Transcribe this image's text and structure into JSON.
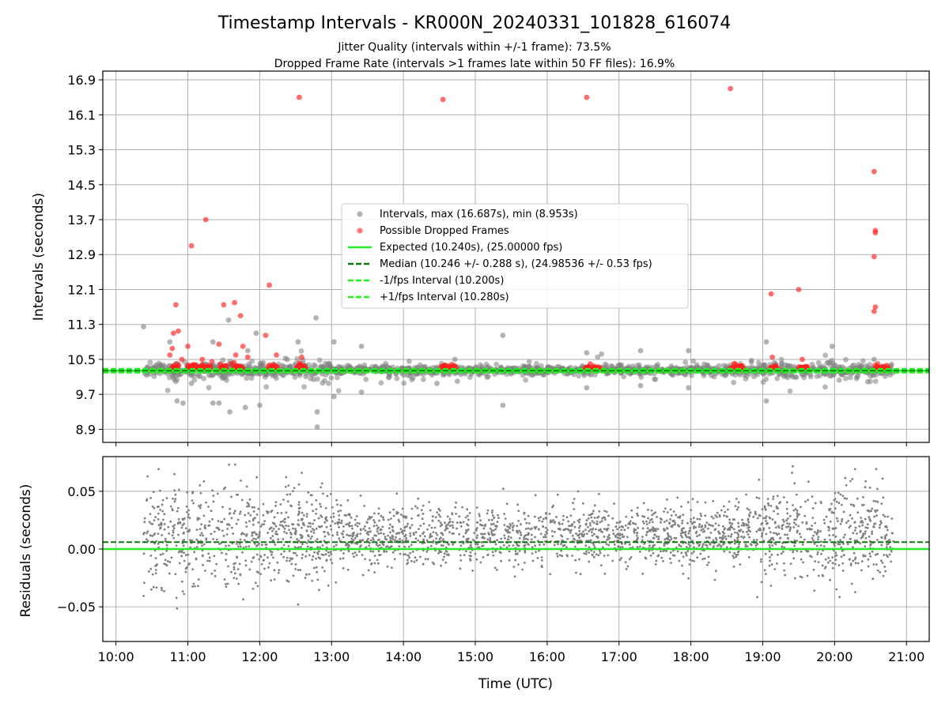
{
  "figure": {
    "title": "Timestamp Intervals - KR000N_20240331_101828_616074",
    "subtitle_1": "Jitter Quality (intervals within +/-1 frame): 73.5%",
    "subtitle_2": "Dropped Frame Rate (intervals >1 frames late within 50 FF files): 16.9%"
  },
  "colors": {
    "intervals": "#808080",
    "dropped": "#ff2020",
    "expected": "#22ee22",
    "median": "#0a7a0a",
    "band": "#22ee22",
    "grid": "#b0b0b0"
  },
  "chart_data": [
    {
      "type": "scatter",
      "ylabel": "Intervals (seconds)",
      "xlim": [
        "09:49",
        "21:19"
      ],
      "ylim": [
        8.6,
        17.1
      ],
      "ytick_labels": [
        "8.9",
        "9.7",
        "10.5",
        "11.3",
        "12.1",
        "12.9",
        "13.7",
        "14.5",
        "15.3",
        "16.1",
        "16.9"
      ],
      "ytick_values": [
        8.9,
        9.7,
        10.5,
        11.3,
        12.1,
        12.9,
        13.7,
        14.5,
        15.3,
        16.1,
        16.9
      ],
      "grid": true,
      "legend_position": "center",
      "legend": [
        {
          "label": "Intervals, max (16.687s), min (8.953s)",
          "marker": "dot",
          "color": "#808080"
        },
        {
          "label": "Possible Dropped Frames",
          "marker": "dot",
          "color": "#ff2020"
        },
        {
          "label": "Expected (10.240s), (25.00000 fps)",
          "marker": "line",
          "color": "#22ee22"
        },
        {
          "label": "Median (10.246 +/- 0.288 s), (24.98536 +/- 0.53 fps)",
          "marker": "dash",
          "color": "#0a7a0a"
        },
        {
          "label": "-1/fps Interval (10.200s)",
          "marker": "dash",
          "color": "#22ee22"
        },
        {
          "label": "+1/fps Interval (10.280s)",
          "marker": "dash",
          "color": "#22ee22"
        }
      ],
      "reference_lines": {
        "expected": 10.24,
        "median": 10.246,
        "minus_interval": 10.2,
        "plus_interval": 10.28
      },
      "dense_band": {
        "x_start": "10:23",
        "x_end": "20:49",
        "center": 10.25
      },
      "dropped_clusters": [
        {
          "x_start": "10:47",
          "x_end": "10:52",
          "y": 10.29
        },
        {
          "x_start": "11:00",
          "x_end": "11:20",
          "y": 10.29
        },
        {
          "x_start": "11:26",
          "x_end": "11:32",
          "y": 10.29
        },
        {
          "x_start": "11:38",
          "x_end": "11:46",
          "y": 10.29
        },
        {
          "x_start": "12:07",
          "x_end": "12:15",
          "y": 10.29
        },
        {
          "x_start": "12:30",
          "x_end": "12:38",
          "y": 10.29
        },
        {
          "x_start": "14:32",
          "x_end": "14:44",
          "y": 10.28
        },
        {
          "x_start": "16:32",
          "x_end": "16:44",
          "y": 10.28
        },
        {
          "x_start": "18:33",
          "x_end": "18:44",
          "y": 10.28
        },
        {
          "x_start": "19:06",
          "x_end": "19:12",
          "y": 10.28
        },
        {
          "x_start": "19:30",
          "x_end": "19:38",
          "y": 10.28
        },
        {
          "x_start": "20:33",
          "x_end": "20:45",
          "y": 10.27
        }
      ],
      "notable_intervals": [
        {
          "x": "10:23",
          "y": 11.25
        },
        {
          "x": "10:45",
          "y": 10.9
        },
        {
          "x": "10:51",
          "y": 9.55
        },
        {
          "x": "10:56",
          "y": 9.5
        },
        {
          "x": "11:03",
          "y": 9.95
        },
        {
          "x": "11:21",
          "y": 9.5
        },
        {
          "x": "11:21",
          "y": 10.9
        },
        {
          "x": "11:26",
          "y": 9.5
        },
        {
          "x": "11:34",
          "y": 11.4
        },
        {
          "x": "11:35",
          "y": 9.3
        },
        {
          "x": "11:48",
          "y": 9.4
        },
        {
          "x": "11:50",
          "y": 10.7
        },
        {
          "x": "11:57",
          "y": 11.1
        },
        {
          "x": "12:00",
          "y": 9.45
        },
        {
          "x": "12:23",
          "y": 10.5
        },
        {
          "x": "12:32",
          "y": 10.9
        },
        {
          "x": "12:47",
          "y": 11.45
        },
        {
          "x": "12:48",
          "y": 8.953
        },
        {
          "x": "12:48",
          "y": 9.3
        },
        {
          "x": "13:02",
          "y": 10.9
        },
        {
          "x": "13:02",
          "y": 9.65
        },
        {
          "x": "13:25",
          "y": 10.8
        },
        {
          "x": "13:25",
          "y": 9.75
        },
        {
          "x": "14:28",
          "y": 9.95
        },
        {
          "x": "14:43",
          "y": 10.5
        },
        {
          "x": "14:45",
          "y": 10.0
        },
        {
          "x": "15:23",
          "y": 11.05
        },
        {
          "x": "15:23",
          "y": 9.45
        },
        {
          "x": "16:33",
          "y": 10.65
        },
        {
          "x": "16:33",
          "y": 9.85
        },
        {
          "x": "17:18",
          "y": 10.7
        },
        {
          "x": "17:18",
          "y": 9.9
        },
        {
          "x": "17:58",
          "y": 10.7
        },
        {
          "x": "17:58",
          "y": 9.85
        },
        {
          "x": "19:03",
          "y": 10.9
        },
        {
          "x": "19:03",
          "y": 9.55
        },
        {
          "x": "19:58",
          "y": 10.8
        },
        {
          "x": "20:33",
          "y": 10.5
        }
      ],
      "notable_dropped": [
        {
          "x": "10:45",
          "y": 10.6
        },
        {
          "x": "10:47",
          "y": 10.75
        },
        {
          "x": "10:48",
          "y": 11.1
        },
        {
          "x": "10:50",
          "y": 11.75
        },
        {
          "x": "10:51",
          "y": 10.4
        },
        {
          "x": "10:52",
          "y": 11.15
        },
        {
          "x": "10:55",
          "y": 10.5
        },
        {
          "x": "11:00",
          "y": 10.8
        },
        {
          "x": "11:03",
          "y": 13.1
        },
        {
          "x": "11:12",
          "y": 10.5
        },
        {
          "x": "11:15",
          "y": 13.7
        },
        {
          "x": "11:20",
          "y": 10.45
        },
        {
          "x": "11:26",
          "y": 10.85
        },
        {
          "x": "11:30",
          "y": 11.75
        },
        {
          "x": "11:36",
          "y": 10.4
        },
        {
          "x": "11:39",
          "y": 11.8
        },
        {
          "x": "11:40",
          "y": 10.6
        },
        {
          "x": "11:44",
          "y": 11.5
        },
        {
          "x": "11:46",
          "y": 10.8
        },
        {
          "x": "11:50",
          "y": 10.55
        },
        {
          "x": "12:05",
          "y": 11.05
        },
        {
          "x": "12:08",
          "y": 12.2
        },
        {
          "x": "12:14",
          "y": 10.6
        },
        {
          "x": "12:33",
          "y": 16.5
        },
        {
          "x": "12:35",
          "y": 10.55
        },
        {
          "x": "14:33",
          "y": 16.45
        },
        {
          "x": "16:33",
          "y": 16.5
        },
        {
          "x": "16:36",
          "y": 10.4
        },
        {
          "x": "18:33",
          "y": 16.7
        },
        {
          "x": "18:36",
          "y": 10.4
        },
        {
          "x": "19:07",
          "y": 12.0
        },
        {
          "x": "19:08",
          "y": 10.55
        },
        {
          "x": "19:30",
          "y": 12.1
        },
        {
          "x": "19:33",
          "y": 10.5
        },
        {
          "x": "20:33",
          "y": 14.8
        },
        {
          "x": "20:34",
          "y": 13.45
        },
        {
          "x": "20:34",
          "y": 13.4
        },
        {
          "x": "20:33",
          "y": 12.85
        },
        {
          "x": "20:34",
          "y": 11.7
        },
        {
          "x": "20:33",
          "y": 11.6
        },
        {
          "x": "20:36",
          "y": 10.4
        }
      ]
    },
    {
      "type": "scatter",
      "xlabel": "Time (UTC)",
      "ylabel": "Residuals (seconds)",
      "xlim": [
        "09:49",
        "21:19"
      ],
      "ylim": [
        -0.08,
        0.08
      ],
      "ytick_labels": [
        "−0.05",
        "0.00",
        "0.05"
      ],
      "ytick_values": [
        -0.05,
        0.0,
        0.05
      ],
      "xtick_labels": [
        "10:00",
        "11:00",
        "12:00",
        "13:00",
        "14:00",
        "15:00",
        "16:00",
        "17:00",
        "18:00",
        "19:00",
        "20:00",
        "21:00"
      ],
      "grid": true,
      "reference_lines": {
        "zero": 0.0,
        "median_offset": 0.006
      },
      "residual_band": {
        "x_start": "10:23",
        "x_end": "20:49",
        "center": 0.012,
        "spread": 0.03
      }
    }
  ]
}
